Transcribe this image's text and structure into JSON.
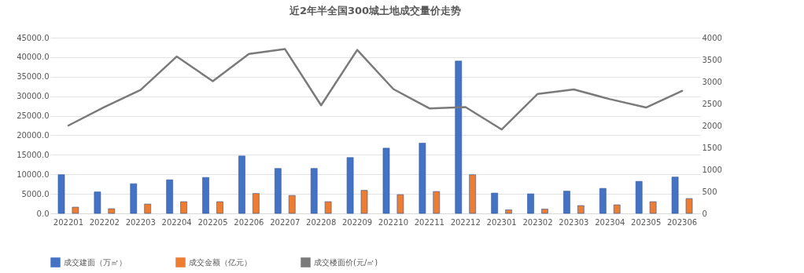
{
  "chart_data": {
    "type": "bar",
    "title": "近2年半全国300城土地成交量价走势",
    "categories": [
      "202201",
      "202202",
      "202203",
      "202204",
      "202205",
      "202206",
      "202207",
      "202208",
      "202209",
      "202210",
      "202211",
      "202212",
      "202301",
      "202302",
      "202303",
      "202304",
      "202305",
      "202306"
    ],
    "series": [
      {
        "name": "成交建面（万㎡）",
        "color": "#4472c4",
        "values": [
          9900,
          5500,
          7600,
          8600,
          9200,
          14700,
          11500,
          11500,
          14300,
          16700,
          18000,
          39000,
          5200,
          5000,
          5700,
          6400,
          8200,
          9300
        ]
      },
      {
        "name": "成交金额（亿元）",
        "color": "#ed7d31",
        "values": [
          1600,
          1200,
          2400,
          3000,
          3000,
          5100,
          4600,
          3000,
          5900,
          4800,
          5600,
          9900,
          900,
          1100,
          2000,
          2200,
          3000,
          3800
        ]
      },
      {
        "name": "成交楼面价(元/㎡)",
        "type": "line",
        "axis": "y2",
        "color": "#7a7a7a",
        "values": [
          2000,
          2420,
          2810,
          3570,
          3010,
          3630,
          3740,
          2460,
          3720,
          2830,
          2390,
          2420,
          1910,
          2720,
          2820,
          2600,
          2410,
          2790
        ]
      }
    ],
    "ylim": [
      0,
      45000
    ],
    "yticks": [
      {
        "value": 0,
        "label": "0.0"
      },
      {
        "value": 5000,
        "label": "5000.0"
      },
      {
        "value": 10000,
        "label": "10000.0"
      },
      {
        "value": 15000,
        "label": "15000.0"
      },
      {
        "value": 20000,
        "label": "20000.0"
      },
      {
        "value": 25000,
        "label": "25000.0"
      },
      {
        "value": 30000,
        "label": "30000.0"
      },
      {
        "value": 35000,
        "label": "35000.0"
      },
      {
        "value": 40000,
        "label": "40000.0"
      },
      {
        "value": 45000,
        "label": "45000.0"
      }
    ],
    "y2lim": [
      0,
      4000
    ],
    "y2ticks": [
      0,
      500,
      1000,
      1500,
      2000,
      2500,
      3000,
      3500,
      4000
    ],
    "grid": "y",
    "legend": "bottom"
  }
}
